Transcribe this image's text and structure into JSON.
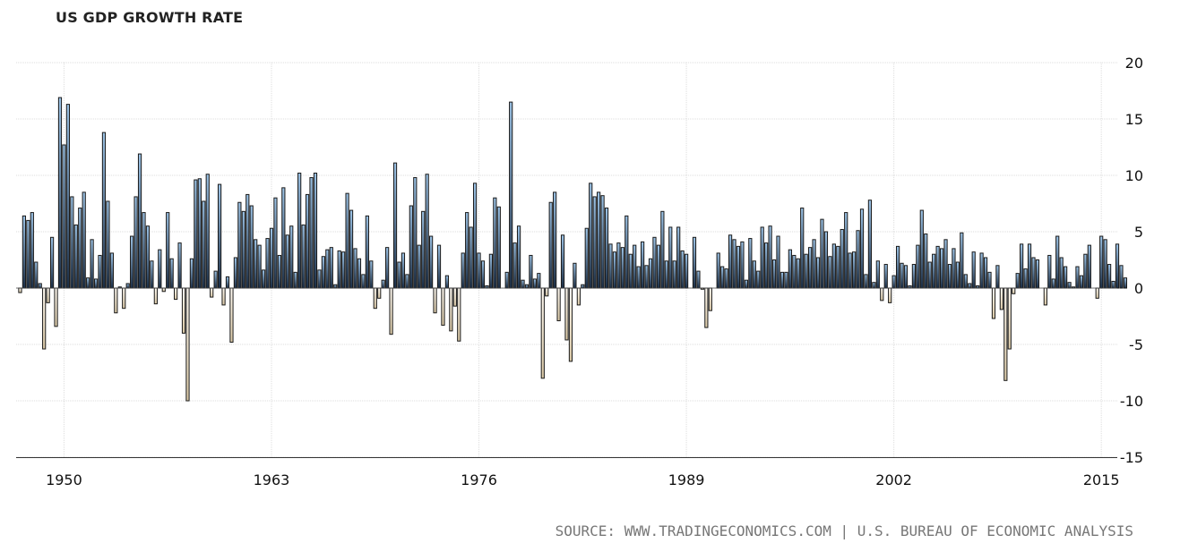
{
  "colors": {
    "positive_top": "#9cc3e6",
    "positive_bottom": "#1c2f47",
    "negative_top": "#fffaf2",
    "negative_bottom": "#d8c7a5",
    "bar_stroke": "#1a1a1a",
    "grid": "#dddddd",
    "source_text": "#777777"
  },
  "source": {
    "text": "SOURCE: WWW.TRADINGECONOMICS.COM | U.S. BUREAU OF ECONOMIC ANALYSIS"
  },
  "chart_data": {
    "type": "bar",
    "title": "US GDP GROWTH RATE",
    "xlabel": "",
    "ylabel": "",
    "ylim": [
      -15,
      20
    ],
    "y_ticks": [
      20,
      15,
      10,
      5,
      0,
      -5,
      -10,
      -15
    ],
    "x_ticks": [
      "1950",
      "1963",
      "1976",
      "1989",
      "2002",
      "2015"
    ],
    "x_tick_positions": [
      1950,
      1963,
      1976,
      1989,
      2002,
      2015
    ],
    "grid": true,
    "legend": "none",
    "x_start": 1947.25,
    "x_step": 0.25,
    "values": [
      -0.4,
      6.4,
      6.0,
      6.7,
      2.3,
      0.4,
      -5.4,
      -1.3,
      4.5,
      -3.4,
      16.9,
      12.7,
      16.3,
      8.1,
      5.6,
      7.1,
      8.5,
      0.9,
      4.3,
      0.8,
      2.9,
      13.8,
      7.7,
      3.1,
      -2.2,
      0.1,
      -1.8,
      0.4,
      4.6,
      8.1,
      11.9,
      6.7,
      5.5,
      2.4,
      -1.4,
      3.4,
      -0.3,
      6.7,
      2.6,
      -1.0,
      4.0,
      -4.0,
      -10.0,
      2.6,
      9.6,
      9.7,
      7.7,
      10.1,
      -0.8,
      1.5,
      9.2,
      -1.5,
      1.0,
      -4.8,
      2.7,
      7.6,
      6.8,
      8.3,
      7.3,
      4.3,
      3.8,
      1.6,
      4.4,
      5.3,
      8.0,
      2.9,
      8.9,
      4.7,
      5.5,
      1.4,
      10.2,
      5.6,
      8.3,
      9.8,
      10.2,
      1.6,
      2.8,
      3.4,
      3.6,
      0.3,
      3.3,
      3.2,
      8.4,
      6.9,
      3.5,
      2.6,
      1.2,
      6.4,
      2.4,
      -1.8,
      -0.9,
      0.7,
      3.6,
      -4.1,
      11.1,
      2.3,
      3.1,
      1.2,
      7.3,
      9.8,
      3.8,
      6.8,
      10.1,
      4.6,
      -2.2,
      3.8,
      -3.3,
      1.1,
      -3.8,
      -1.6,
      -4.7,
      3.1,
      6.7,
      5.4,
      9.3,
      3.1,
      2.4,
      0.2,
      3.0,
      8.0,
      7.2,
      0.0,
      1.4,
      16.5,
      4.0,
      5.5,
      0.7,
      0.3,
      2.9,
      0.8,
      1.3,
      -8.0,
      -0.7,
      7.6,
      8.5,
      -2.9,
      4.7,
      -4.6,
      -6.5,
      2.2,
      -1.5,
      0.3,
      5.3,
      9.3,
      8.1,
      8.5,
      8.2,
      7.1,
      3.9,
      3.2,
      4.0,
      3.6,
      6.4,
      3.0,
      3.8,
      1.9,
      4.1,
      2.0,
      2.6,
      4.5,
      3.8,
      6.8,
      2.4,
      5.4,
      2.4,
      5.4,
      3.3,
      3.0,
      0.0,
      4.5,
      1.5,
      -0.1,
      -3.5,
      -2.0,
      0.0,
      3.1,
      1.9,
      1.7,
      4.7,
      4.3,
      3.7,
      4.1,
      0.7,
      4.4,
      2.4,
      1.5,
      5.4,
      4.0,
      5.5,
      2.5,
      4.6,
      1.4,
      1.4,
      3.4,
      2.9,
      2.6,
      7.1,
      3.0,
      3.6,
      4.3,
      2.7,
      6.1,
      5.0,
      2.8,
      3.9,
      3.7,
      5.2,
      6.7,
      3.1,
      3.2,
      5.1,
      7.0,
      1.2,
      7.8,
      0.5,
      2.4,
      -1.1,
      2.1,
      -1.3,
      1.1,
      3.7,
      2.2,
      2.0,
      0.2,
      2.1,
      3.8,
      6.9,
      4.8,
      2.3,
      3.0,
      3.7,
      3.5,
      4.3,
      2.1,
      3.5,
      2.3,
      4.9,
      1.2,
      0.4,
      3.2,
      0.2,
      3.1,
      2.7,
      1.4,
      -2.7,
      2.0,
      -1.9,
      -8.2,
      -5.4,
      -0.5,
      1.3,
      3.9,
      1.7,
      3.9,
      2.7,
      2.5,
      0.0,
      -1.5,
      2.9,
      0.8,
      4.6,
      2.7,
      1.9,
      0.5,
      0.1,
      1.9,
      1.1,
      3.0,
      3.8,
      0.0,
      -0.9,
      4.6,
      4.3,
      2.1,
      0.6,
      3.9,
      2.0,
      0.9
    ]
  }
}
